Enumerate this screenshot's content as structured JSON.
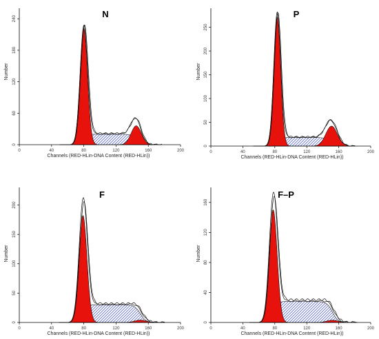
{
  "chart_data": [
    {
      "type": "area",
      "title": "N",
      "xlabel": "Channels (RED-HLin-DNA Content (RED-HLin))",
      "ylabel": "Number",
      "xlim": [
        0,
        200
      ],
      "ylim": [
        0,
        260
      ],
      "xticks": [
        "0",
        "40",
        "80",
        "120",
        "160",
        "200"
      ],
      "yticks": [
        "0",
        "60",
        "120",
        "180",
        "240"
      ],
      "g1": {
        "peak_x": 80,
        "sigma": 4.6,
        "height": 222
      },
      "s_phase": {
        "from": 82,
        "to": 146,
        "level": 20
      },
      "g2": {
        "peak_x": 145,
        "sigma": 6.3,
        "height": 36
      },
      "data_peak_boost": [
        0,
        4
      ],
      "grid": false
    },
    {
      "type": "area",
      "title": "P",
      "xlabel": "Channels (RED-HLin-DNA Content (RED-HLin))",
      "ylabel": "Number",
      "xlim": [
        0,
        200
      ],
      "ylim": [
        0,
        290
      ],
      "xticks": [
        "0",
        "40",
        "80",
        "120",
        "160",
        "200"
      ],
      "yticks": [
        "0",
        "50",
        "100",
        "150",
        "200",
        "250"
      ],
      "g1": {
        "peak_x": 83,
        "sigma": 4.3,
        "height": 272
      },
      "s_phase": {
        "from": 85,
        "to": 150,
        "level": 18
      },
      "g2": {
        "peak_x": 151,
        "sigma": 7.2,
        "height": 42
      },
      "data_peak_boost": [
        5,
        7
      ],
      "grid": false
    },
    {
      "type": "area",
      "title": "F",
      "xlabel": "Channels (RED-HLin-DNA Content (RED-HLin))",
      "ylabel": "Number",
      "xlim": [
        0,
        200
      ],
      "ylim": [
        0,
        230
      ],
      "xticks": [
        "0",
        "40",
        "80",
        "120",
        "160",
        "200"
      ],
      "yticks": [
        "0",
        "50",
        "100",
        "150",
        "200"
      ],
      "g1": {
        "peak_x": 79,
        "sigma": 5.0,
        "height": 182
      },
      "s_phase": {
        "from": 80,
        "to": 150,
        "level": 30
      },
      "g2": {
        "peak_x": 150,
        "sigma": 7.0,
        "height": 4
      },
      "data_peak_boost": [
        18,
        3
      ],
      "grid": false
    },
    {
      "type": "area",
      "title": "F–P",
      "xlabel": "Channels (RED-HLin-DNA Content (RED-HLin))",
      "ylabel": "Number",
      "xlim": [
        0,
        200
      ],
      "ylim": [
        0,
        180
      ],
      "xticks": [
        "0",
        "40",
        "80",
        "120",
        "160",
        "200"
      ],
      "yticks": [
        "0",
        "40",
        "80",
        "120",
        "160"
      ],
      "g1": {
        "peak_x": 78,
        "sigma": 5.0,
        "height": 150
      },
      "s_phase": {
        "from": 80,
        "to": 152,
        "level": 28
      },
      "g2": {
        "peak_x": 152,
        "sigma": 7.0,
        "height": 3
      },
      "data_peak_boost": [
        15,
        3
      ],
      "grid": false
    }
  ]
}
